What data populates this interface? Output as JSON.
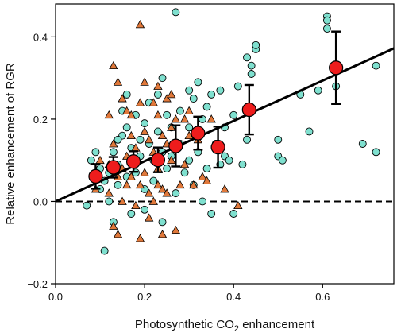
{
  "chart_data": {
    "type": "scatter",
    "xlabel_main": "Photosynthetic CO",
    "xlabel_sub": "2",
    "xlabel_rest": " enhancement",
    "ylabel": "Relative enhancement of RGR",
    "xlim": [
      0.0,
      0.76
    ],
    "ylim": [
      -0.2,
      0.48
    ],
    "xticks": [
      0.0,
      0.2,
      0.4,
      0.6
    ],
    "yticks": [
      -0.2,
      0.0,
      0.2,
      0.4
    ],
    "xtick_labels": [
      "0.0",
      "0.2",
      "0.4",
      "0.6"
    ],
    "ytick_labels": [
      "−0.2",
      "0.0",
      "0.2",
      "0.4"
    ],
    "grid": false,
    "colors": {
      "circles": "#7fe0cf",
      "triangles": "#e0783a",
      "means": "#ee1c1c",
      "line": "#000000"
    },
    "regression_line": {
      "x": [
        0.0,
        0.76
      ],
      "y": [
        0.0,
        0.372
      ]
    },
    "reference_line": {
      "y": 0.0,
      "style": "dashed"
    },
    "series": [
      {
        "marker": "circle",
        "points": [
          [
            0.07,
            -0.01
          ],
          [
            0.08,
            0.1
          ],
          [
            0.09,
            0.12
          ],
          [
            0.1,
            0.03
          ],
          [
            0.1,
            0.08
          ],
          [
            0.11,
            -0.12
          ],
          [
            0.11,
            0.05
          ],
          [
            0.12,
            0.0
          ],
          [
            0.12,
            0.07
          ],
          [
            0.13,
            0.12
          ],
          [
            0.13,
            -0.05
          ],
          [
            0.14,
            0.04
          ],
          [
            0.14,
            0.09
          ],
          [
            0.15,
            0.16
          ],
          [
            0.15,
            0.22
          ],
          [
            0.16,
            0.18
          ],
          [
            0.16,
            0.26
          ],
          [
            0.16,
            0.06
          ],
          [
            0.17,
            0.13
          ],
          [
            0.17,
            -0.03
          ],
          [
            0.18,
            0.21
          ],
          [
            0.18,
            0.07
          ],
          [
            0.19,
            0.15
          ],
          [
            0.19,
            0.11
          ],
          [
            0.2,
            0.19
          ],
          [
            0.2,
            0.03
          ],
          [
            0.21,
            0.14
          ],
          [
            0.21,
            0.24
          ],
          [
            0.22,
            0.05
          ],
          [
            0.22,
            0.1
          ],
          [
            0.23,
            0.17
          ],
          [
            0.23,
            0.26
          ],
          [
            0.24,
            0.12
          ],
          [
            0.24,
            -0.05
          ],
          [
            0.25,
            0.21
          ],
          [
            0.25,
            0.08
          ],
          [
            0.26,
            0.18
          ],
          [
            0.26,
            0.11
          ],
          [
            0.27,
            0.02
          ],
          [
            0.27,
            0.46
          ],
          [
            0.28,
            0.14
          ],
          [
            0.28,
            0.22
          ],
          [
            0.29,
            0.07
          ],
          [
            0.3,
            0.18
          ],
          [
            0.3,
            0.1
          ],
          [
            0.31,
            0.25
          ],
          [
            0.31,
            0.04
          ],
          [
            0.32,
            0.12
          ],
          [
            0.32,
            0.29
          ],
          [
            0.33,
            0.2
          ],
          [
            0.33,
            0.0
          ],
          [
            0.34,
            0.08
          ],
          [
            0.34,
            0.23
          ],
          [
            0.35,
            0.26
          ],
          [
            0.35,
            -0.03
          ],
          [
            0.36,
            0.14
          ],
          [
            0.37,
            0.27
          ],
          [
            0.37,
            0.09
          ],
          [
            0.38,
            0.18
          ],
          [
            0.38,
            0.11
          ],
          [
            0.39,
            0.1
          ],
          [
            0.4,
            0.21
          ],
          [
            0.4,
            -0.03
          ],
          [
            0.41,
            0.28
          ],
          [
            0.42,
            0.09
          ],
          [
            0.43,
            0.35
          ],
          [
            0.43,
            0.15
          ],
          [
            0.44,
            0.33
          ],
          [
            0.45,
            0.37
          ],
          [
            0.45,
            0.38
          ],
          [
            0.44,
            0.31
          ],
          [
            0.5,
            0.15
          ],
          [
            0.5,
            0.11
          ],
          [
            0.51,
            0.1
          ],
          [
            0.55,
            0.26
          ],
          [
            0.57,
            0.17
          ],
          [
            0.59,
            0.27
          ],
          [
            0.61,
            0.45
          ],
          [
            0.61,
            0.44
          ],
          [
            0.61,
            0.42
          ],
          [
            0.63,
            0.28
          ],
          [
            0.69,
            0.14
          ],
          [
            0.72,
            0.33
          ],
          [
            0.72,
            0.12
          ],
          [
            0.24,
            0.3
          ],
          [
            0.2,
            -0.02
          ],
          [
            0.14,
            0.15
          ],
          [
            0.3,
            0.27
          ]
        ]
      },
      {
        "marker": "triangle",
        "points": [
          [
            0.09,
            0.03
          ],
          [
            0.1,
            0.1
          ],
          [
            0.12,
            0.21
          ],
          [
            0.12,
            0.02
          ],
          [
            0.13,
            0.33
          ],
          [
            0.13,
            0.14
          ],
          [
            0.13,
            -0.06
          ],
          [
            0.14,
            0.29
          ],
          [
            0.14,
            0.06
          ],
          [
            0.14,
            -0.08
          ],
          [
            0.15,
            0.25
          ],
          [
            0.15,
            0.0
          ],
          [
            0.16,
            0.22
          ],
          [
            0.16,
            0.11
          ],
          [
            0.16,
            0.04
          ],
          [
            0.17,
            0.21
          ],
          [
            0.17,
            0.16
          ],
          [
            0.18,
            0.13
          ],
          [
            0.18,
            -0.01
          ],
          [
            0.19,
            0.43
          ],
          [
            0.19,
            0.24
          ],
          [
            0.19,
            0.04
          ],
          [
            0.2,
            0.29
          ],
          [
            0.2,
            0.17
          ],
          [
            0.2,
            0.07
          ],
          [
            0.21,
            0.15
          ],
          [
            0.21,
            0.02
          ],
          [
            0.21,
            -0.04
          ],
          [
            0.22,
            0.24
          ],
          [
            0.22,
            0.12
          ],
          [
            0.22,
            0.0
          ],
          [
            0.23,
            0.28
          ],
          [
            0.23,
            0.21
          ],
          [
            0.23,
            0.08
          ],
          [
            0.24,
            0.16
          ],
          [
            0.24,
            0.03
          ],
          [
            0.24,
            -0.08
          ],
          [
            0.25,
            0.25
          ],
          [
            0.25,
            0.14
          ],
          [
            0.25,
            0.02
          ],
          [
            0.26,
            0.26
          ],
          [
            0.26,
            0.18
          ],
          [
            0.26,
            0.1
          ],
          [
            0.27,
            0.2
          ],
          [
            0.27,
            0.13
          ],
          [
            0.28,
            0.04
          ],
          [
            0.29,
            0.09
          ],
          [
            0.29,
            0.2
          ],
          [
            0.3,
            0.22
          ],
          [
            0.3,
            0.16
          ],
          [
            0.31,
            0.04
          ],
          [
            0.32,
            0.15
          ],
          [
            0.33,
            0.06
          ],
          [
            0.34,
            0.05
          ],
          [
            0.35,
            0.2
          ],
          [
            0.38,
            0.03
          ],
          [
            0.41,
            -0.01
          ],
          [
            0.19,
            -0.09
          ],
          [
            0.12,
            0.09
          ],
          [
            0.17,
            0.06
          ],
          [
            0.27,
            -0.07
          ],
          [
            0.15,
            0.08
          ],
          [
            0.23,
            0.04
          ]
        ]
      },
      {
        "marker": "mean",
        "points": [
          [
            0.09,
            0.061,
            0.03
          ],
          [
            0.13,
            0.083,
            0.025
          ],
          [
            0.175,
            0.097,
            0.025
          ],
          [
            0.23,
            0.101,
            0.03
          ],
          [
            0.27,
            0.135,
            0.05
          ],
          [
            0.32,
            0.166,
            0.04
          ],
          [
            0.365,
            0.132,
            0.05
          ],
          [
            0.435,
            0.223,
            0.06
          ],
          [
            0.63,
            0.325,
            0.088
          ]
        ]
      }
    ]
  }
}
